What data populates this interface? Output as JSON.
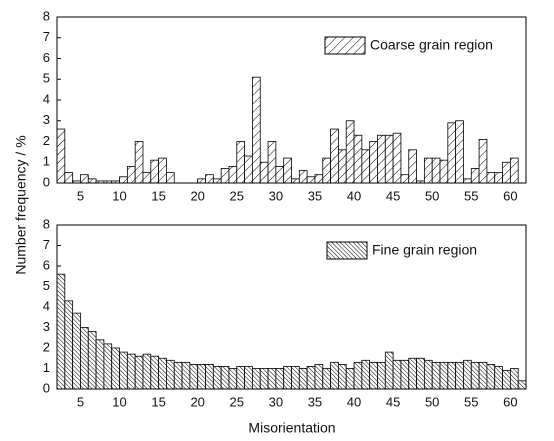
{
  "chart_data": [
    {
      "type": "histogram",
      "y_label": "Number frequency / %",
      "bins": [
        2,
        3,
        4,
        5,
        6,
        7,
        8,
        9,
        10,
        11,
        12,
        13,
        14,
        15,
        16,
        17,
        18,
        19,
        20,
        21,
        22,
        23,
        24,
        25,
        26,
        27,
        28,
        29,
        30,
        31,
        32,
        33,
        34,
        35,
        36,
        37,
        38,
        39,
        40,
        41,
        42,
        43,
        44,
        45,
        46,
        47,
        48,
        49,
        50,
        51,
        52,
        53,
        54,
        55,
        56,
        57,
        58,
        59,
        60,
        61,
        62
      ],
      "series": [
        {
          "name": "Coarse grain region",
          "color": "#000000",
          "hatch": "sparse-forward",
          "values": [
            2.6,
            0.5,
            0.1,
            0.4,
            0.2,
            0.1,
            0.1,
            0.1,
            0.3,
            0.8,
            2.0,
            0.5,
            1.1,
            1.2,
            0.5,
            0,
            0,
            0,
            0.2,
            0.4,
            0.2,
            0.7,
            0.8,
            2.0,
            1.3,
            5.1,
            1.0,
            2.0,
            0.8,
            1.2,
            0.2,
            0.6,
            0.3,
            0.4,
            1.2,
            2.6,
            1.6,
            3.0,
            2.3,
            1.6,
            2.0,
            2.3,
            2.3,
            2.4,
            0.4,
            1.6,
            0.1,
            1.2,
            1.2,
            1.1,
            2.9,
            3.0,
            0.2,
            0.7,
            2.1,
            0.5,
            0.5,
            1.0,
            1.2,
            0
          ]
        }
      ],
      "xlim": [
        2,
        62
      ],
      "xticks": [
        5,
        10,
        15,
        20,
        25,
        30,
        35,
        40,
        45,
        50,
        55,
        60
      ],
      "ylim": [
        0,
        8
      ],
      "yticks": [
        0,
        1,
        2,
        3,
        4,
        5,
        6,
        7,
        8
      ]
    },
    {
      "type": "histogram",
      "x_label": "Misorientation",
      "bins": [
        2,
        3,
        4,
        5,
        6,
        7,
        8,
        9,
        10,
        11,
        12,
        13,
        14,
        15,
        16,
        17,
        18,
        19,
        20,
        21,
        22,
        23,
        24,
        25,
        26,
        27,
        28,
        29,
        30,
        31,
        32,
        33,
        34,
        35,
        36,
        37,
        38,
        39,
        40,
        41,
        42,
        43,
        44,
        45,
        46,
        47,
        48,
        49,
        50,
        51,
        52,
        53,
        54,
        55,
        56,
        57,
        58,
        59,
        60,
        61,
        62
      ],
      "series": [
        {
          "name": "Fine grain region",
          "color": "#000000",
          "hatch": "dense-backward",
          "values": [
            5.6,
            4.3,
            3.7,
            3.0,
            2.8,
            2.4,
            2.2,
            2.0,
            1.8,
            1.7,
            1.6,
            1.7,
            1.6,
            1.5,
            1.4,
            1.3,
            1.3,
            1.2,
            1.2,
            1.2,
            1.1,
            1.1,
            1.0,
            1.1,
            1.1,
            1.0,
            1.0,
            1.0,
            1.0,
            1.1,
            1.1,
            1.0,
            1.1,
            1.2,
            1.0,
            1.3,
            1.2,
            1.0,
            1.3,
            1.4,
            1.3,
            1.3,
            1.8,
            1.4,
            1.4,
            1.5,
            1.5,
            1.4,
            1.3,
            1.3,
            1.3,
            1.3,
            1.4,
            1.3,
            1.3,
            1.2,
            1.1,
            0.9,
            1.0,
            0.4
          ]
        }
      ],
      "xlim": [
        2,
        62
      ],
      "xticks": [
        5,
        10,
        15,
        20,
        25,
        30,
        35,
        40,
        45,
        50,
        55,
        60
      ],
      "ylim": [
        0,
        8
      ],
      "yticks": [
        0,
        1,
        2,
        3,
        4,
        5,
        6,
        7,
        8
      ]
    }
  ]
}
